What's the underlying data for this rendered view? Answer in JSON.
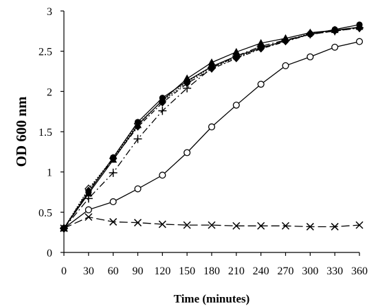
{
  "chart_data": {
    "type": "line",
    "title": "",
    "xlabel": "Time (minutes)",
    "ylabel": "OD 600 nm",
    "xlim": [
      0,
      360
    ],
    "ylim": [
      0,
      3
    ],
    "x": [
      0,
      30,
      60,
      90,
      120,
      150,
      180,
      210,
      240,
      270,
      300,
      330,
      360
    ],
    "x_ticks": [
      "0",
      "30",
      "60",
      "90",
      "120",
      "150",
      "180",
      "210",
      "240",
      "270",
      "300",
      "330",
      "360"
    ],
    "y_ticks": [
      "0",
      "0.5",
      "1",
      "1.5",
      "2",
      "2.5",
      "3"
    ],
    "grid": false,
    "legend": "none",
    "series": [
      {
        "marker": "filled-circle",
        "dash": "solid",
        "values": [
          0.3,
          0.75,
          1.18,
          1.62,
          1.92,
          2.13,
          2.31,
          2.44,
          2.54,
          2.63,
          2.71,
          2.77,
          2.83
        ]
      },
      {
        "marker": "filled-triangle",
        "dash": "solid",
        "values": [
          0.3,
          0.73,
          1.15,
          1.58,
          1.89,
          2.16,
          2.36,
          2.49,
          2.6,
          2.66,
          2.73,
          2.76,
          2.8
        ]
      },
      {
        "marker": "filled-diamond",
        "dash": "dash-dot",
        "values": [
          0.3,
          0.77,
          1.16,
          1.56,
          1.86,
          2.1,
          2.28,
          2.41,
          2.53,
          2.62,
          2.71,
          2.75,
          2.79
        ]
      },
      {
        "marker": "open-diamond",
        "dash": "dotted",
        "values": [
          0.3,
          0.79,
          1.17,
          1.6,
          1.88,
          2.12,
          2.3,
          2.42,
          2.54,
          2.63,
          2.72,
          2.76,
          2.79
        ]
      },
      {
        "marker": "plus",
        "dash": "long-dash-dot",
        "values": [
          0.3,
          0.67,
          0.99,
          1.41,
          1.76,
          2.04,
          2.29,
          2.44,
          2.56,
          2.64,
          2.71,
          2.75,
          2.79
        ]
      },
      {
        "marker": "open-circle",
        "dash": "solid",
        "values": [
          0.3,
          0.53,
          0.63,
          0.79,
          0.96,
          1.24,
          1.56,
          1.83,
          2.09,
          2.32,
          2.43,
          2.55,
          2.62
        ]
      },
      {
        "marker": "x",
        "dash": "long-dash",
        "values": [
          0.3,
          0.44,
          0.38,
          0.37,
          0.35,
          0.34,
          0.34,
          0.33,
          0.33,
          0.33,
          0.32,
          0.32,
          0.34
        ]
      }
    ]
  }
}
